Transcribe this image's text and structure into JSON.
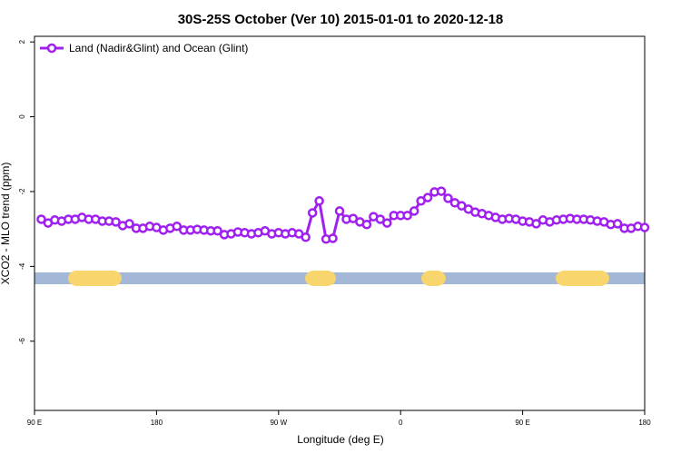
{
  "chart_data": {
    "type": "line",
    "title": "30S-25S October (Ver 10)   2015-01-01 to 2020-12-18",
    "xlabel": "Longitude (deg E)",
    "ylabel": "XCO2 - MLO trend (ppm)",
    "x": [
      95,
      100,
      105,
      110,
      115,
      120,
      125,
      130,
      135,
      140,
      145,
      150,
      155,
      160,
      165,
      170,
      175,
      180,
      185,
      190,
      195,
      200,
      205,
      210,
      215,
      220,
      225,
      230,
      235,
      240,
      245,
      250,
      255,
      260,
      265,
      270,
      275,
      280,
      285,
      290,
      295,
      300,
      305,
      310,
      315,
      320,
      325,
      330,
      335,
      340,
      345,
      350,
      355,
      360,
      365,
      370,
      375,
      380,
      385,
      390,
      395,
      400,
      405,
      410,
      415,
      420,
      425,
      430,
      435,
      440,
      445,
      450,
      455,
      460,
      465,
      470,
      475,
      480,
      485,
      490,
      495,
      500,
      505,
      510,
      515,
      520,
      525,
      530,
      535,
      540
    ],
    "series": [
      {
        "name": "Land (Nadir&Glint) and Ocean (Glint)",
        "color": "#a020f0",
        "values": [
          -2.74,
          -2.84,
          -2.76,
          -2.79,
          -2.74,
          -2.74,
          -2.69,
          -2.74,
          -2.74,
          -2.79,
          -2.79,
          -2.81,
          -2.91,
          -2.86,
          -2.98,
          -2.98,
          -2.93,
          -2.96,
          -3.03,
          -2.98,
          -2.93,
          -3.03,
          -3.03,
          -3.01,
          -3.03,
          -3.05,
          -3.05,
          -3.15,
          -3.13,
          -3.08,
          -3.1,
          -3.13,
          -3.1,
          -3.05,
          -3.13,
          -3.1,
          -3.13,
          -3.1,
          -3.13,
          -3.22,
          -2.57,
          -2.25,
          -3.27,
          -3.25,
          -2.52,
          -2.74,
          -2.72,
          -2.81,
          -2.88,
          -2.67,
          -2.74,
          -2.84,
          -2.64,
          -2.64,
          -2.64,
          -2.52,
          -2.25,
          -2.16,
          -2.01,
          -1.99,
          -2.18,
          -2.3,
          -2.38,
          -2.47,
          -2.55,
          -2.59,
          -2.64,
          -2.69,
          -2.74,
          -2.72,
          -2.74,
          -2.79,
          -2.81,
          -2.86,
          -2.76,
          -2.81,
          -2.76,
          -2.74,
          -2.72,
          -2.74,
          -2.74,
          -2.76,
          -2.79,
          -2.81,
          -2.88,
          -2.86,
          -2.98,
          -2.98,
          -2.93,
          -2.96
        ]
      }
    ],
    "xlim": [
      90,
      540
    ],
    "xticks": [
      {
        "value": 90,
        "label": "90 E"
      },
      {
        "value": 180,
        "label": "180"
      },
      {
        "value": 270,
        "label": "90 W"
      },
      {
        "value": 360,
        "label": "0"
      },
      {
        "value": 450,
        "label": "90 E"
      },
      {
        "value": 540,
        "label": "180"
      }
    ],
    "ylim": [
      -7.85,
      2.15
    ],
    "yticks": [
      -6,
      -4,
      -2,
      0,
      2
    ],
    "legend": "top-left"
  }
}
